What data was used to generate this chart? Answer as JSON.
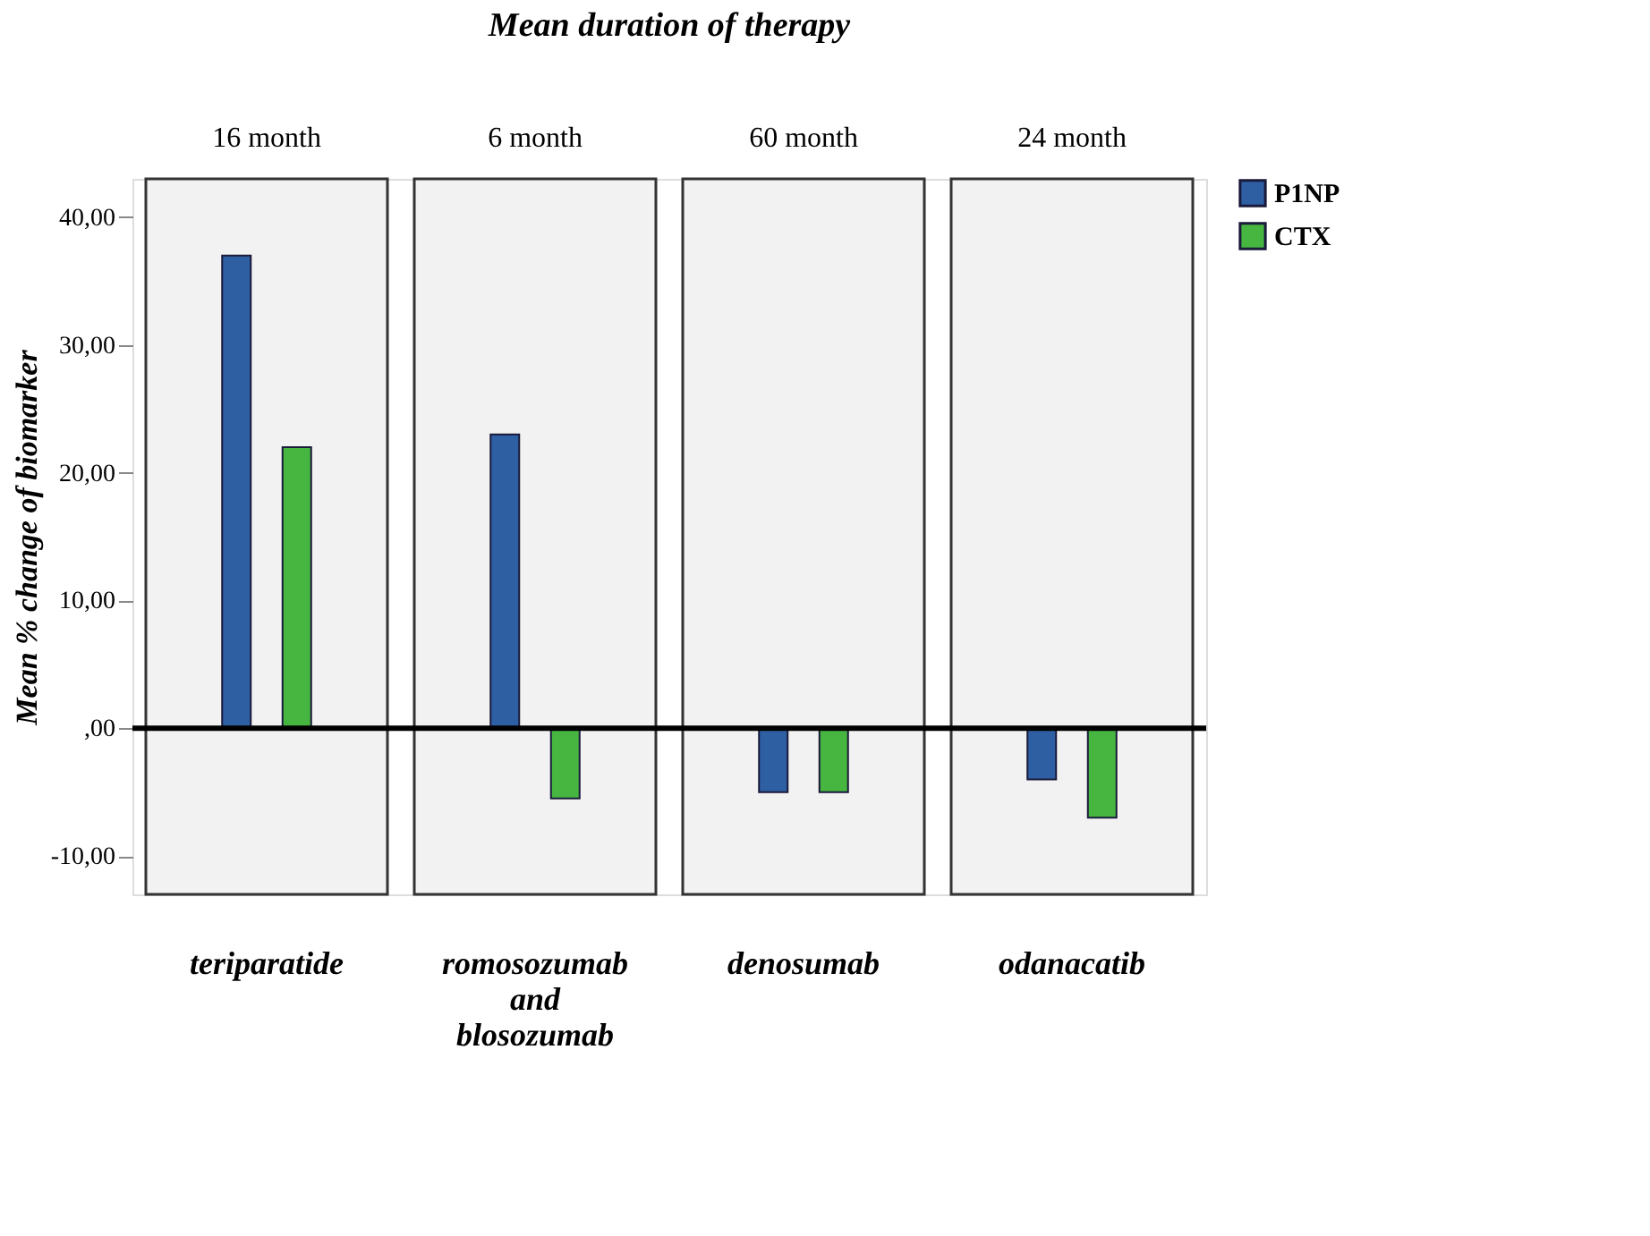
{
  "chart_data": {
    "type": "bar",
    "title": "Mean duration of therapy",
    "ylabel": "Mean % change of biomarker",
    "categories": [
      "teriparatide",
      "romosozumab and blosozumab",
      "denosumab",
      "odanacatib"
    ],
    "annotations": [
      "16 month",
      "6 month",
      "60 month",
      "24 month"
    ],
    "series": [
      {
        "name": "P1NP",
        "color": "#2e5fa3",
        "values": [
          37,
          23,
          -5,
          -4
        ]
      },
      {
        "name": "CTX",
        "color": "#46b641",
        "values": [
          22,
          -5.5,
          -5,
          -7
        ]
      }
    ],
    "ylim": [
      -13,
      43
    ],
    "yticks": [
      {
        "value": -10,
        "label": "-10,00"
      },
      {
        "value": 0,
        "label": ",00"
      },
      {
        "value": 10,
        "label": "10,00"
      },
      {
        "value": 20,
        "label": "20,00"
      },
      {
        "value": 30,
        "label": "30,00"
      },
      {
        "value": 40,
        "label": "40,00"
      }
    ],
    "ref_lines": [
      {
        "axis": "y",
        "value": 0,
        "color": "#000000"
      }
    ],
    "bands": [
      {
        "axis": "x",
        "from": "teriparatide",
        "to": "teriparatide",
        "color": "#f2f2f2"
      },
      {
        "axis": "x",
        "from": "romosozumab and blosozumab",
        "to": "romosozumab and blosozumab",
        "color": "#f2f2f2"
      },
      {
        "axis": "x",
        "from": "denosumab",
        "to": "denosumab",
        "color": "#f2f2f2"
      },
      {
        "axis": "x",
        "from": "odanacatib",
        "to": "odanacatib",
        "color": "#f2f2f2"
      }
    ],
    "grid": false,
    "legend": "top right"
  }
}
